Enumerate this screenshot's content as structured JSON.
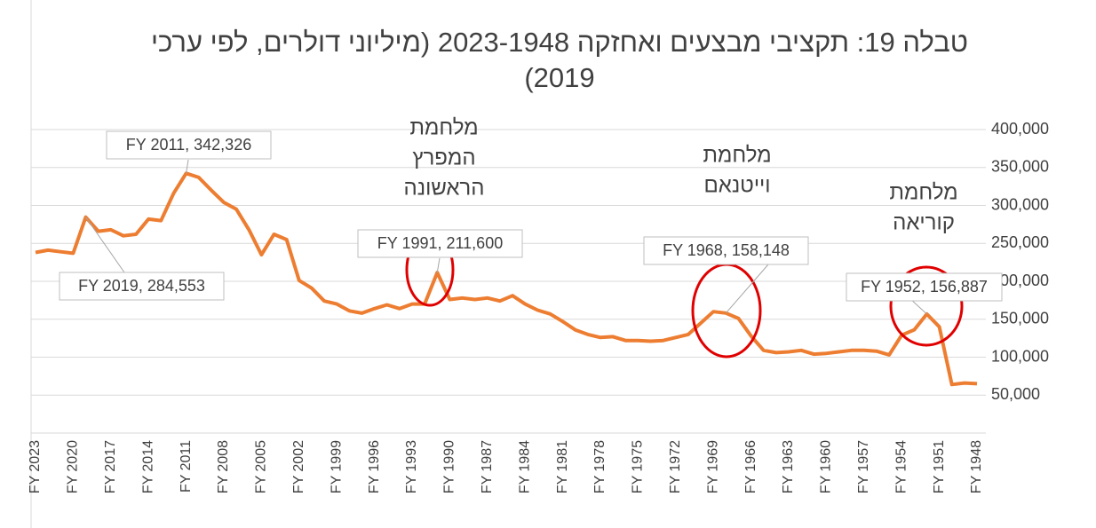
{
  "chart_data": {
    "type": "line",
    "title": "טבלה 19: תקציבי מבצעים ואחזקה 2023-1948 (מיליוני דולרים, לפי ערכי 2019)",
    "categories": [
      "FY 2023",
      null,
      null,
      "FY 2020",
      null,
      null,
      "FY 2017",
      null,
      null,
      "FY 2014",
      null,
      null,
      "FY 2011",
      null,
      null,
      "FY 2008",
      null,
      null,
      "FY 2005",
      null,
      null,
      "FY 2002",
      null,
      null,
      "FY 1999",
      null,
      null,
      "FY 1996",
      null,
      null,
      "FY 1993",
      null,
      null,
      "FY 1990",
      null,
      null,
      "FY 1987",
      null,
      null,
      "FY 1984",
      null,
      null,
      "FY 1981",
      null,
      null,
      "FY 1978",
      null,
      null,
      "FY 1975",
      null,
      null,
      "FY 1972",
      null,
      null,
      "FY 1969",
      null,
      null,
      "FY 1966",
      null,
      null,
      "FY 1963",
      null,
      null,
      "FY 1960",
      null,
      null,
      "FY 1957",
      null,
      null,
      "FY 1954",
      null,
      null,
      "FY 1951",
      null,
      null,
      "FY 1948"
    ],
    "values": [
      238000,
      241000,
      239000,
      237000,
      284553,
      266000,
      268000,
      260000,
      262000,
      282000,
      280000,
      316000,
      342326,
      337000,
      320000,
      304000,
      295000,
      268000,
      235000,
      262000,
      255000,
      201000,
      191000,
      174000,
      170000,
      161000,
      158000,
      164000,
      169000,
      164000,
      170000,
      170000,
      211600,
      176000,
      178000,
      176000,
      178000,
      174000,
      181000,
      170000,
      162000,
      157000,
      147000,
      136000,
      130000,
      126000,
      127000,
      122000,
      122000,
      121000,
      122000,
      126000,
      130000,
      145000,
      160000,
      158148,
      151000,
      128000,
      109000,
      106000,
      107000,
      109000,
      104000,
      105000,
      107000,
      109000,
      109000,
      108000,
      103000,
      129000,
      136000,
      156887,
      140000,
      64000,
      66000,
      65000
    ],
    "color": "#ed7d31",
    "ylim": [
      0,
      400000
    ],
    "yticks": [
      {
        "value": 50000,
        "label": "50,000"
      },
      {
        "value": 100000,
        "label": "100,000"
      },
      {
        "value": 150000,
        "label": "150,000"
      },
      {
        "value": 200000,
        "label": "200,000"
      },
      {
        "value": 250000,
        "label": "250,000"
      },
      {
        "value": 300000,
        "label": "300,000"
      },
      {
        "value": 350000,
        "label": "350,000"
      },
      {
        "value": 400000,
        "label": "400,000"
      }
    ],
    "grid": true,
    "annotations": [
      "FY 2011, 342,326",
      "FY 2019, 284,553",
      "FY 1991, 211,600",
      "FY 1968, 158,148",
      "FY 1952, 156,887"
    ],
    "war_labels": [
      [
        "מלחמת",
        "המפרץ",
        "הראשונה"
      ],
      [
        "מלחמת",
        "וייטנאם"
      ],
      [
        "מלחמת",
        "קוריאה"
      ]
    ]
  }
}
